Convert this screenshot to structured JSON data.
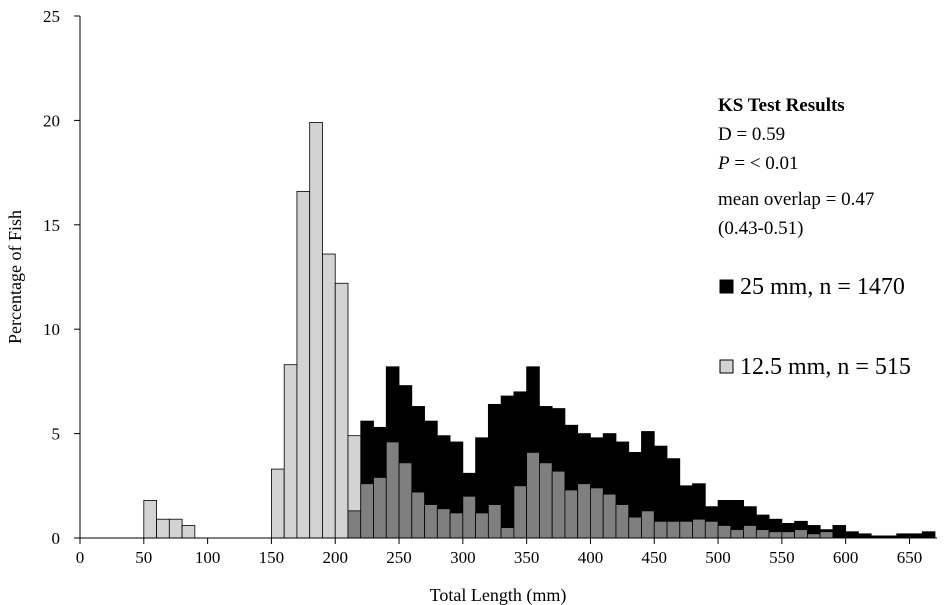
{
  "chart_data": {
    "type": "bar",
    "xlabel": "Total Length (mm)",
    "ylabel": "Percentage of Fish",
    "xlim": [
      0,
      670
    ],
    "ylim": [
      0,
      25
    ],
    "bin_width": 10,
    "x_ticks": [
      0,
      50,
      100,
      150,
      200,
      250,
      300,
      350,
      400,
      450,
      500,
      550,
      600,
      650
    ],
    "y_ticks": [
      0,
      5,
      10,
      15,
      20,
      25
    ],
    "series": [
      {
        "name": "25 mm, n = 1470",
        "color": "#000000",
        "bins": [
          220,
          230,
          240,
          250,
          260,
          270,
          280,
          290,
          300,
          310,
          320,
          330,
          340,
          350,
          360,
          370,
          380,
          390,
          400,
          410,
          420,
          430,
          440,
          450,
          460,
          470,
          480,
          490,
          500,
          510,
          520,
          530,
          540,
          550,
          560,
          570,
          580,
          590,
          600,
          610,
          620,
          630,
          640,
          650,
          660
        ],
        "values": [
          5.6,
          5.3,
          8.2,
          7.3,
          6.3,
          5.6,
          4.9,
          4.6,
          3.1,
          4.8,
          6.4,
          6.8,
          7.0,
          8.2,
          6.3,
          6.2,
          5.4,
          5.0,
          4.8,
          5.0,
          4.6,
          4.1,
          5.1,
          4.4,
          3.8,
          2.5,
          2.6,
          1.5,
          1.8,
          1.8,
          1.5,
          1.1,
          0.9,
          0.7,
          0.8,
          0.6,
          0.4,
          0.6,
          0.3,
          0.2,
          0.1,
          0.1,
          0.2,
          0.2,
          0.3
        ]
      },
      {
        "name": "12.5 mm, n = 515",
        "color": "#d3d3d3",
        "bins": [
          50,
          60,
          70,
          80,
          150,
          160,
          170,
          180,
          190,
          200,
          210
        ],
        "values": [
          1.8,
          0.9,
          0.9,
          0.6,
          3.3,
          8.3,
          16.6,
          19.9,
          13.6,
          12.2,
          4.9
        ]
      }
    ],
    "overlap": {
      "name": "overlap",
      "color": "#7f7f7f",
      "bins": [
        210,
        220,
        230,
        240,
        250,
        260,
        270,
        280,
        290,
        300,
        310,
        320,
        330,
        340,
        350,
        360,
        370,
        380,
        390,
        400,
        410,
        420,
        430,
        440,
        450,
        460,
        470,
        480,
        490,
        500,
        510,
        520,
        530,
        540,
        550,
        560,
        570,
        580
      ],
      "values": [
        1.3,
        2.6,
        2.9,
        4.6,
        3.6,
        2.2,
        1.6,
        1.4,
        1.2,
        2.0,
        1.2,
        1.6,
        0.5,
        2.5,
        4.1,
        3.6,
        3.2,
        2.3,
        2.6,
        2.4,
        2.1,
        1.6,
        1.0,
        1.3,
        0.8,
        0.8,
        0.8,
        0.9,
        0.8,
        0.6,
        0.4,
        0.6,
        0.4,
        0.3,
        0.3,
        0.4,
        0.2,
        0.3
      ]
    },
    "grid": false,
    "legend_position": "right"
  },
  "annotation": {
    "heading": "KS Test Results",
    "d_stat": "D = 0.59",
    "p_italic": "P",
    "p_rest": " = < 0.01",
    "overlap_line": "mean overlap = 0.47",
    "ci_line": "(0.43-0.51)"
  },
  "legend": {
    "items": [
      {
        "label": "25 mm, n = 1470",
        "color": "#000000"
      },
      {
        "label": "12.5 mm, n = 515",
        "color": "#d3d3d3"
      }
    ]
  }
}
